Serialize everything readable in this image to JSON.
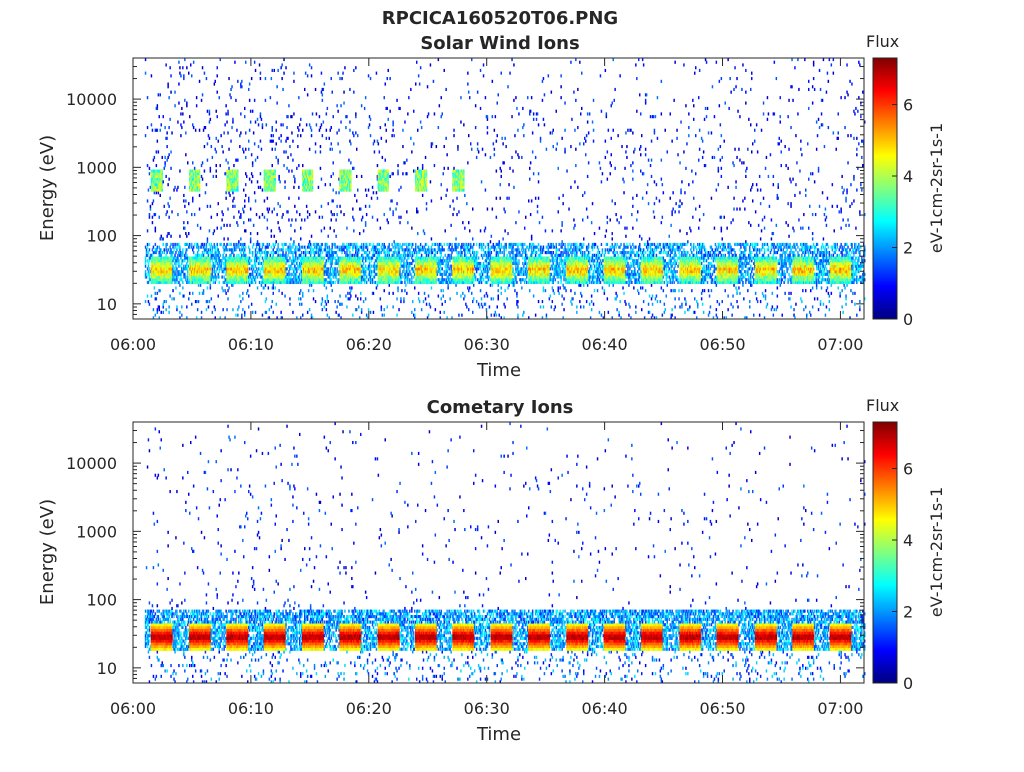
{
  "figure": {
    "title": "RPCICA160520T06.PNG"
  },
  "chart_data": [
    {
      "type": "heatmap",
      "title": "Solar Wind Ions",
      "xlabel": "Time",
      "ylabel": "Energy (eV)",
      "y_scale": "log",
      "ylim": [
        6,
        40000
      ],
      "y_ticks": [
        10,
        100,
        1000,
        10000
      ],
      "y_tick_labels": [
        "10",
        "100",
        "1000",
        "10000"
      ],
      "x_range": [
        "06:00",
        "07:02"
      ],
      "x_tick_labels": [
        "06:00",
        "06:10",
        "06:20",
        "06:30",
        "06:40",
        "06:50",
        "07:00"
      ],
      "colorbar": {
        "title": "Flux",
        "label": "eV-1cm-2sr-1s-1",
        "range": [
          0,
          7.3
        ],
        "ticks": [
          0,
          2,
          4,
          6
        ],
        "colormap": "jet"
      },
      "features": {
        "data_start": "06:01",
        "periodic_hot_bands_energy_eV": [
          20,
          50
        ],
        "periodic_peak_energy_eV": [
          450,
          900
        ],
        "period_minutes": 3.2
      }
    },
    {
      "type": "heatmap",
      "title": "Cometary Ions",
      "xlabel": "Time",
      "ylabel": "Energy (eV)",
      "y_scale": "log",
      "ylim": [
        6,
        40000
      ],
      "y_ticks": [
        10,
        100,
        1000,
        10000
      ],
      "y_tick_labels": [
        "10",
        "100",
        "1000",
        "10000"
      ],
      "x_range": [
        "06:00",
        "07:02"
      ],
      "x_tick_labels": [
        "06:00",
        "06:10",
        "06:20",
        "06:30",
        "06:40",
        "06:50",
        "07:00"
      ],
      "colorbar": {
        "title": "Flux",
        "label": "eV-1cm-2sr-1s-1",
        "range": [
          0,
          7.3
        ],
        "ticks": [
          0,
          2,
          4,
          6
        ],
        "colormap": "jet"
      },
      "features": {
        "data_start": "06:01",
        "periodic_hot_bands_energy_eV": [
          18,
          45
        ],
        "period_minutes": 3.2
      }
    }
  ]
}
